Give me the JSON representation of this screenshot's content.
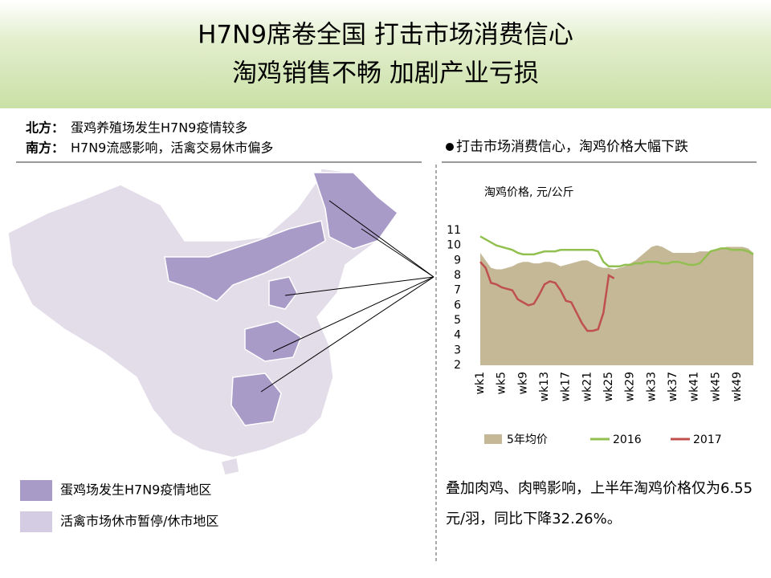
{
  "header": {
    "title_line1": "H7N9席卷全国  打击市场消费信心",
    "title_line2": "淘鸡销售不畅 加剧产业亏损"
  },
  "notes": [
    {
      "label": "北方：",
      "text": "蛋鸡养殖场发生H7N9疫情较多"
    },
    {
      "label": "南方：",
      "text": "H7N9流感影响，活禽交易休市偏多"
    }
  ],
  "map_legend": [
    "蛋鸡场发生H7N9疫情地区",
    "活禽市场休市暂停/休市地区"
  ],
  "bullet_heading": "打击市场消费信心，淘鸡价格大幅下跌",
  "caption": "叠加肉鸡、肉鸭影响，上半年淘鸡价格仅为6.55元/羽，同比下降32.26%。",
  "chart_data": {
    "type": "line",
    "title": "淘鸡价格, 元/公斤",
    "categories": [
      "wk1",
      null,
      null,
      null,
      "wk5",
      null,
      null,
      null,
      "wk9",
      null,
      null,
      null,
      "wk13",
      null,
      null,
      null,
      "wk17",
      null,
      null,
      null,
      "wk21",
      null,
      null,
      null,
      "wk25",
      null,
      null,
      null,
      "wk29",
      null,
      null,
      null,
      "wk33",
      null,
      null,
      null,
      "wk37",
      null,
      null,
      null,
      "wk41",
      null,
      null,
      null,
      "wk45",
      null,
      null,
      null,
      "wk49",
      null,
      null,
      null
    ],
    "series": [
      {
        "name": "5年均价",
        "kind": "area",
        "color": "#c4b896",
        "values": [
          9.5,
          9.0,
          8.5,
          8.4,
          8.4,
          8.5,
          8.6,
          8.8,
          8.9,
          8.9,
          8.8,
          8.8,
          8.9,
          8.9,
          8.8,
          8.6,
          8.7,
          8.8,
          8.9,
          9.0,
          9.0,
          8.8,
          8.6,
          8.5,
          8.5,
          8.4,
          8.5,
          8.6,
          8.8,
          9.0,
          9.3,
          9.6,
          9.9,
          10.0,
          9.9,
          9.7,
          9.5,
          9.5,
          9.5,
          9.5,
          9.5,
          9.6,
          9.6,
          9.6,
          9.7,
          9.8,
          9.9,
          9.9,
          9.9,
          9.9,
          9.8,
          9.5
        ]
      },
      {
        "name": "2016",
        "color": "#92c050",
        "values": [
          10.6,
          10.4,
          10.2,
          10.0,
          9.9,
          9.8,
          9.7,
          9.5,
          9.4,
          9.4,
          9.4,
          9.5,
          9.6,
          9.6,
          9.6,
          9.7,
          9.7,
          9.7,
          9.7,
          9.7,
          9.7,
          9.7,
          9.6,
          8.9,
          8.6,
          8.6,
          8.6,
          8.7,
          8.7,
          8.8,
          8.8,
          8.9,
          8.9,
          8.9,
          8.8,
          8.8,
          8.9,
          8.9,
          8.8,
          8.7,
          8.7,
          8.8,
          9.2,
          9.6,
          9.7,
          9.8,
          9.8,
          9.7,
          9.7,
          9.7,
          9.6,
          9.4
        ]
      },
      {
        "name": "2017",
        "color": "#c0504d",
        "values": [
          8.9,
          8.5,
          7.5,
          7.4,
          7.2,
          7.1,
          7.0,
          6.4,
          6.2,
          6.0,
          6.1,
          6.7,
          7.4,
          7.6,
          7.5,
          7.0,
          6.3,
          6.2,
          5.5,
          4.8,
          4.3,
          4.3,
          4.4,
          5.5,
          8.0,
          7.8,
          null,
          null,
          null,
          null,
          null,
          null,
          null,
          null,
          null,
          null,
          null,
          null,
          null,
          null,
          null,
          null,
          null,
          null,
          null,
          null,
          null,
          null,
          null,
          null,
          null,
          null
        ]
      }
    ],
    "ylim": [
      2,
      11
    ],
    "yticks": [
      2,
      3,
      4,
      5,
      6,
      7,
      8,
      9,
      10,
      11
    ],
    "grid": false,
    "legend": "bottom"
  }
}
